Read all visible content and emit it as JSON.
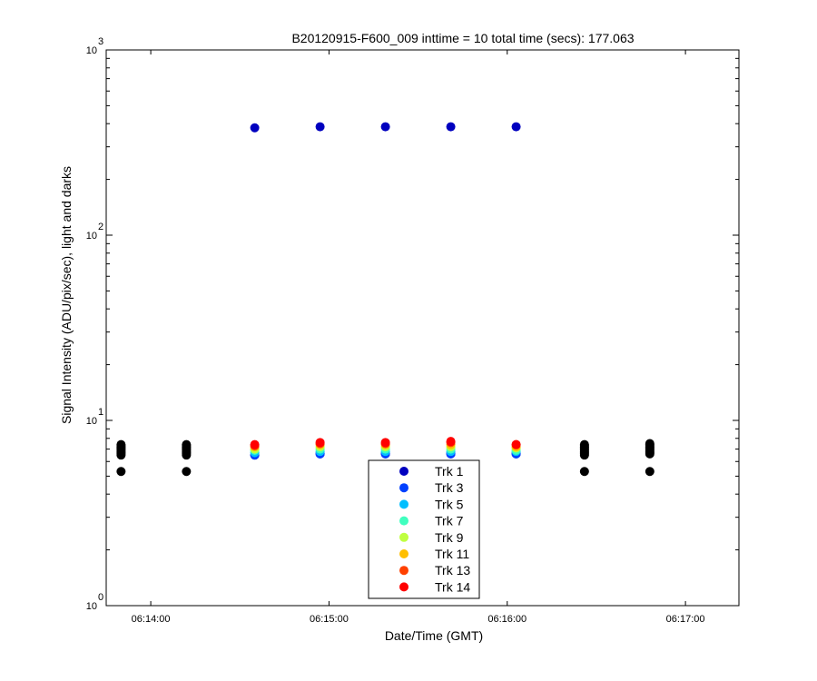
{
  "chart_data": {
    "type": "scatter",
    "title": "B20120915-F600_009 inttime = 10 total time (secs): 177.063",
    "xlabel": "Date/Time (GMT)",
    "ylabel": "Signal Intensity (ADU/pix/sec), light and darks",
    "yscale": "log",
    "ylim": [
      1,
      1000
    ],
    "xlim": [
      "06:13:45",
      "06:17:18"
    ],
    "xticks": [
      "06:14:00",
      "06:15:00",
      "06:16:00",
      "06:17:00"
    ],
    "yticks": [
      {
        "value": 1,
        "base": "10",
        "exp": "0"
      },
      {
        "value": 10,
        "base": "10",
        "exp": "1"
      },
      {
        "value": 100,
        "base": "10",
        "exp": "2"
      },
      {
        "value": 1000,
        "base": "10",
        "exp": "3"
      }
    ],
    "grid": false,
    "legend_position": "bottom-center",
    "light_times": [
      "06:14:35",
      "06:14:57",
      "06:15:19",
      "06:15:41",
      "06:16:03"
    ],
    "dark_times": [
      "06:13:50",
      "06:14:12",
      "06:16:26",
      "06:16:48"
    ],
    "series": [
      {
        "name": "Trk 1",
        "color": "#0000bf",
        "values": [
          6.5,
          6.6,
          6.6,
          6.6,
          6.6,
          380,
          385,
          385,
          385,
          385
        ]
      },
      {
        "name": "Trk 3",
        "color": "#0040ff",
        "values": [
          6.5,
          6.6,
          6.6,
          6.6,
          6.6
        ]
      },
      {
        "name": "Trk 5",
        "color": "#00bfff",
        "values": [
          6.7,
          6.8,
          6.8,
          6.8,
          6.8
        ]
      },
      {
        "name": "Trk 7",
        "color": "#40ffbf",
        "values": [
          6.9,
          7.0,
          7.0,
          7.0,
          6.9
        ]
      },
      {
        "name": "Trk 9",
        "color": "#bfff40",
        "values": [
          7.0,
          7.2,
          7.2,
          7.2,
          7.1
        ]
      },
      {
        "name": "Trk 11",
        "color": "#ffbf00",
        "values": [
          7.2,
          7.4,
          7.4,
          7.4,
          7.2
        ]
      },
      {
        "name": "Trk 13",
        "color": "#ff4000",
        "values": [
          7.3,
          7.5,
          7.5,
          7.6,
          7.4
        ]
      },
      {
        "name": "Trk 14",
        "color": "#ff0000",
        "values": [
          7.4,
          7.6,
          7.6,
          7.7,
          7.4
        ]
      }
    ],
    "dark_series": {
      "color": "#000000",
      "upper_values": [
        6.5,
        6.6,
        6.7,
        6.8,
        6.9,
        7.0,
        7.1,
        7.2,
        7.3,
        7.4
      ],
      "upper_values_last": [
        6.6,
        6.7,
        6.8,
        6.9,
        7.0,
        7.1,
        7.2,
        7.3,
        7.4,
        7.5
      ],
      "low_value": 5.3
    }
  }
}
